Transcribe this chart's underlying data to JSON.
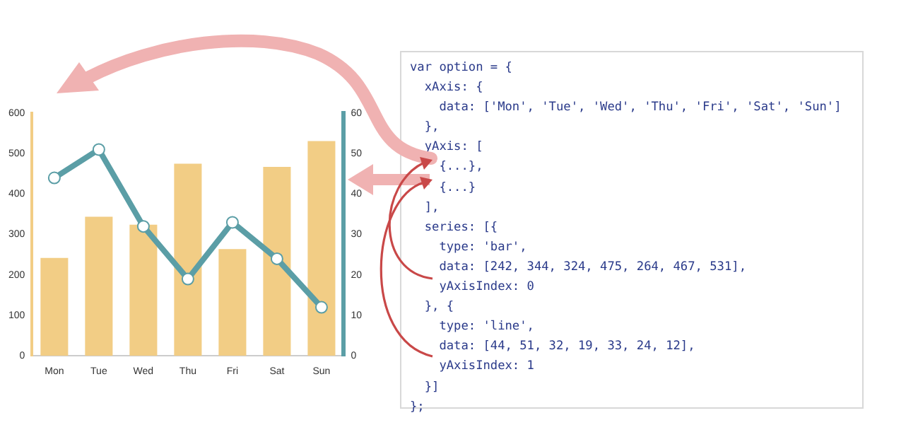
{
  "chart_data": [
    {
      "type": "bar",
      "categories": [
        "Mon",
        "Tue",
        "Wed",
        "Thu",
        "Fri",
        "Sat",
        "Sun"
      ],
      "series": [
        {
          "type": "bar",
          "color": "#f2cd85",
          "values": [
            242,
            344,
            324,
            475,
            264,
            467,
            531
          ]
        },
        {
          "type": "line",
          "color": "#5b9ea6",
          "values": [
            44,
            51,
            32,
            19,
            33,
            24,
            12
          ],
          "axis": "y2"
        }
      ],
      "ylim": [
        0,
        600
      ],
      "yticks": [
        0,
        100,
        200,
        300,
        400,
        500,
        600
      ],
      "y2lim": [
        0,
        60
      ],
      "y2ticks": [
        0,
        10,
        20,
        30,
        40,
        50,
        60
      ],
      "marker": "circle"
    },
    {
      "type": "other",
      "annotations": [
        "var option = {",
        "  xAxis: {",
        "    data: ['Mon', 'Tue', 'Wed', 'Thu', 'Fri', 'Sat', 'Sun']",
        "  },",
        "  yAxis: [",
        "    {...},",
        "    {...}",
        "  ],",
        "  series: [{",
        "    type: 'bar',",
        "    data: [242, 344, 324, 475, 264, 467, 531],",
        "    yAxisIndex: 0",
        "  }, {",
        "    type: 'line',",
        "    data: [44, 51, 32, 19, 33, 24, 12],",
        "    yAxisIndex: 1",
        "  }]",
        "};"
      ]
    }
  ]
}
